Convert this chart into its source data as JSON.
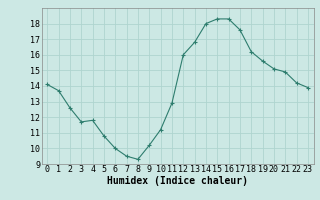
{
  "x": [
    0,
    1,
    2,
    3,
    4,
    5,
    6,
    7,
    8,
    9,
    10,
    11,
    12,
    13,
    14,
    15,
    16,
    17,
    18,
    19,
    20,
    21,
    22,
    23
  ],
  "y": [
    14.1,
    13.7,
    12.6,
    11.7,
    11.8,
    10.8,
    10.0,
    9.5,
    9.3,
    10.2,
    11.2,
    12.9,
    16.0,
    16.8,
    18.0,
    18.3,
    18.3,
    17.6,
    16.2,
    15.6,
    15.1,
    14.9,
    14.2,
    13.9
  ],
  "line_color": "#2e7d6e",
  "marker": "+",
  "marker_size": 3,
  "marker_linewidth": 0.8,
  "background_color": "#cce8e4",
  "grid_color": "#afd4cf",
  "xlabel": "Humidex (Indice chaleur)",
  "xlabel_fontsize": 7,
  "tick_fontsize": 6,
  "ylim": [
    9,
    19
  ],
  "xlim": [
    -0.5,
    23.5
  ],
  "yticks": [
    9,
    10,
    11,
    12,
    13,
    14,
    15,
    16,
    17,
    18
  ],
  "xticks": [
    0,
    1,
    2,
    3,
    4,
    5,
    6,
    7,
    8,
    9,
    10,
    11,
    12,
    13,
    14,
    15,
    16,
    17,
    18,
    19,
    20,
    21,
    22,
    23
  ],
  "xtick_labels": [
    "0",
    "1",
    "2",
    "3",
    "4",
    "5",
    "6",
    "7",
    "8",
    "9",
    "10",
    "11",
    "12",
    "13",
    "14",
    "15",
    "16",
    "17",
    "18",
    "19",
    "20",
    "21",
    "22",
    "23"
  ]
}
